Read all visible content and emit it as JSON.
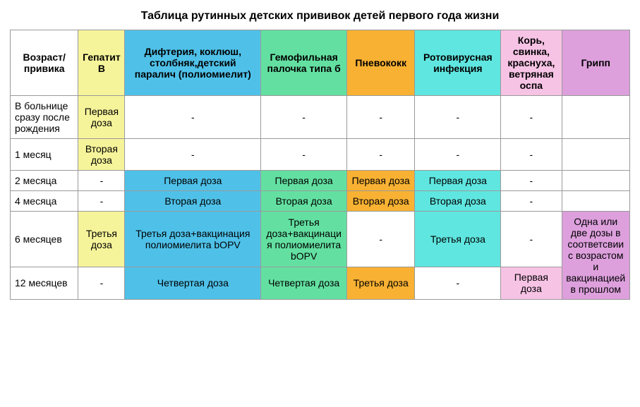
{
  "title": "Таблица рутинных детских прививок детей первого года жизни",
  "colors": {
    "hepb": "#f6f49a",
    "dtap": "#4fc1e9",
    "hib": "#63e0a1",
    "pcv": "#f8b133",
    "rota": "#5fe6e0",
    "mmrv": "#f7c3e5",
    "flu": "#dda0dd",
    "plain": "#ffffff"
  },
  "col_widths": [
    "95",
    "65",
    "190",
    "120",
    "95",
    "120",
    "85",
    "95"
  ],
  "header": {
    "age": "Возраст/ привика",
    "hepb": "Гепатит В",
    "dtap": "Дифтерия, коклюш, столбняк,детский паралич (полиомиелит)",
    "hib": "Гемофильная палочка типа б",
    "pcv": "Пневококк",
    "rota": "Ротовирусная инфекция",
    "mmrv": "Корь, свинка, краснуха, ветряная оспа",
    "flu": "Грипп"
  },
  "rows": [
    {
      "age": "В больнице сразу после рождения",
      "cells": [
        {
          "text": "Первая доза",
          "color": "hepb"
        },
        {
          "text": "-",
          "color": "plain"
        },
        {
          "text": "-",
          "color": "plain"
        },
        {
          "text": "-",
          "color": "plain"
        },
        {
          "text": "-",
          "color": "plain"
        },
        {
          "text": "-",
          "color": "plain"
        },
        {
          "text": "",
          "color": "plain"
        }
      ]
    },
    {
      "age": "1 месяц",
      "cells": [
        {
          "text": "Вторая доза",
          "color": "hepb"
        },
        {
          "text": "-",
          "color": "plain"
        },
        {
          "text": "-",
          "color": "plain"
        },
        {
          "text": "-",
          "color": "plain"
        },
        {
          "text": "-",
          "color": "plain"
        },
        {
          "text": "-",
          "color": "plain"
        },
        {
          "text": "",
          "color": "plain"
        }
      ]
    },
    {
      "age": "2 месяца",
      "cells": [
        {
          "text": "-",
          "color": "plain"
        },
        {
          "text": "Первая доза",
          "color": "dtap"
        },
        {
          "text": "Первая доза",
          "color": "hib"
        },
        {
          "text": "Первая доза",
          "color": "pcv"
        },
        {
          "text": "Первая доза",
          "color": "rota"
        },
        {
          "text": "-",
          "color": "plain"
        },
        {
          "text": "",
          "color": "plain"
        }
      ]
    },
    {
      "age": "4 месяца",
      "cells": [
        {
          "text": "-",
          "color": "plain"
        },
        {
          "text": "Вторая доза",
          "color": "dtap"
        },
        {
          "text": "Вторая доза",
          "color": "hib"
        },
        {
          "text": "Вторая доза",
          "color": "pcv"
        },
        {
          "text": "Вторая доза",
          "color": "rota"
        },
        {
          "text": "-",
          "color": "plain"
        },
        {
          "text": "",
          "color": "plain"
        }
      ]
    },
    {
      "age": "6 месяцев",
      "cells": [
        {
          "text": "Третья доза",
          "color": "hepb"
        },
        {
          "text": "Третья доза+вакцинация полиомиелита bOPV",
          "color": "dtap"
        },
        {
          "text": "Третья доза+вакцинация полиомиелита bOPV",
          "color": "hib"
        },
        {
          "text": "-",
          "color": "plain"
        },
        {
          "text": "Третья доза",
          "color": "rota"
        },
        {
          "text": "-",
          "color": "plain"
        },
        {
          "text": "Одна или две дозы в соответсвии с возрастом и вакцинацией в прошлом",
          "color": "flu",
          "rowspan": 2
        }
      ]
    },
    {
      "age": "12 месяцев",
      "cells": [
        {
          "text": "-",
          "color": "plain"
        },
        {
          "text": "Четвертая доза",
          "color": "dtap"
        },
        {
          "text": "Четвертая доза",
          "color": "hib"
        },
        {
          "text": "Третья доза",
          "color": "pcv"
        },
        {
          "text": "-",
          "color": "plain"
        },
        {
          "text": "Первая доза",
          "color": "mmrv"
        }
      ]
    }
  ]
}
